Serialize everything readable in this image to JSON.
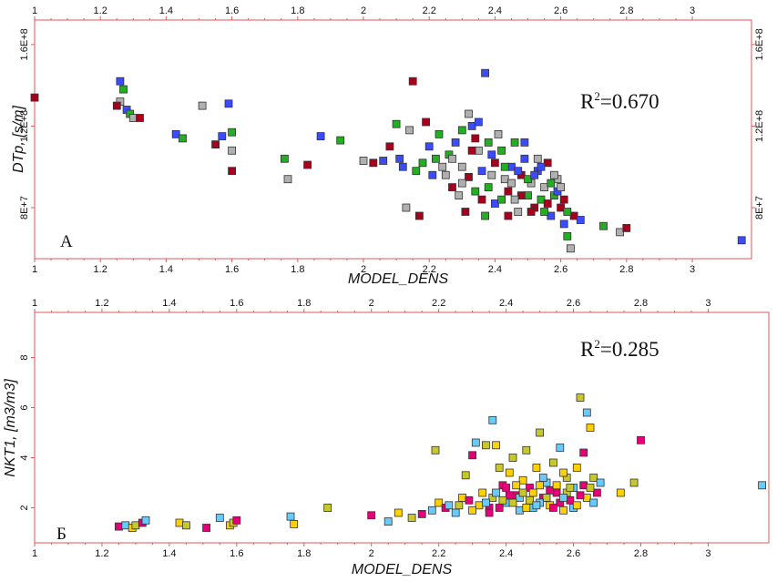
{
  "chart_data": [
    {
      "type": "scatter",
      "panel_label": "А",
      "xlabel": "MODEL_DENS",
      "ylabel": "DTp, [s/m]",
      "annotation": "R²=0.670",
      "annotation_base": "R",
      "annotation_sup": "2",
      "annotation_tail": "=0.670",
      "xlim": [
        1,
        3.18
      ],
      "ylim": [
        55000000,
        172000000
      ],
      "x_ticks": [
        1,
        1.2,
        1.4,
        1.6,
        1.8,
        2,
        2.2,
        2.4,
        2.6,
        2.8,
        3
      ],
      "x_tick_labels": [
        "1",
        "1.2",
        "1.4",
        "1.6",
        "1.8",
        "2",
        "2.2",
        "2.4",
        "2.6",
        "2.8",
        "3"
      ],
      "y_ticks": [
        80000000,
        120000000,
        160000000
      ],
      "y_tick_labels": [
        "8E+7",
        "1.2E+8",
        "1.6E+8"
      ],
      "grid": false,
      "points": [
        {
          "x": 1.0,
          "y": 134000000
        },
        {
          "x": 1.26,
          "y": 142000000
        },
        {
          "x": 1.27,
          "y": 138000000
        },
        {
          "x": 1.26,
          "y": 132000000
        },
        {
          "x": 1.25,
          "y": 130000000
        },
        {
          "x": 1.28,
          "y": 128000000
        },
        {
          "x": 1.29,
          "y": 126000000
        },
        {
          "x": 1.3,
          "y": 124000000
        },
        {
          "x": 1.32,
          "y": 124000000
        },
        {
          "x": 1.43,
          "y": 116000000
        },
        {
          "x": 1.45,
          "y": 114000000
        },
        {
          "x": 1.51,
          "y": 130000000
        },
        {
          "x": 1.55,
          "y": 111000000
        },
        {
          "x": 1.57,
          "y": 115000000
        },
        {
          "x": 1.6,
          "y": 117000000
        },
        {
          "x": 1.6,
          "y": 108000000
        },
        {
          "x": 1.6,
          "y": 98000000
        },
        {
          "x": 1.59,
          "y": 131000000
        },
        {
          "x": 1.76,
          "y": 104000000
        },
        {
          "x": 1.77,
          "y": 94000000
        },
        {
          "x": 1.83,
          "y": 101000000
        },
        {
          "x": 1.87,
          "y": 115000000
        },
        {
          "x": 1.93,
          "y": 113000000
        },
        {
          "x": 2.0,
          "y": 103000000
        },
        {
          "x": 2.03,
          "y": 102000000
        },
        {
          "x": 2.06,
          "y": 103000000
        },
        {
          "x": 2.1,
          "y": 121000000
        },
        {
          "x": 2.14,
          "y": 118000000
        },
        {
          "x": 2.15,
          "y": 142000000
        },
        {
          "x": 2.12,
          "y": 100000000
        },
        {
          "x": 2.16,
          "y": 98000000
        },
        {
          "x": 2.13,
          "y": 80000000
        },
        {
          "x": 2.17,
          "y": 76000000
        },
        {
          "x": 2.2,
          "y": 110000000
        },
        {
          "x": 2.22,
          "y": 104000000
        },
        {
          "x": 2.25,
          "y": 96000000
        },
        {
          "x": 2.27,
          "y": 90000000
        },
        {
          "x": 2.28,
          "y": 112000000
        },
        {
          "x": 2.3,
          "y": 118000000
        },
        {
          "x": 2.3,
          "y": 100000000
        },
        {
          "x": 2.32,
          "y": 95000000
        },
        {
          "x": 2.33,
          "y": 120000000
        },
        {
          "x": 2.34,
          "y": 88000000
        },
        {
          "x": 2.35,
          "y": 108000000
        },
        {
          "x": 2.36,
          "y": 84000000
        },
        {
          "x": 2.37,
          "y": 146000000
        },
        {
          "x": 2.38,
          "y": 112000000
        },
        {
          "x": 2.39,
          "y": 96000000
        },
        {
          "x": 2.4,
          "y": 102000000
        },
        {
          "x": 2.4,
          "y": 82000000
        },
        {
          "x": 2.42,
          "y": 108000000
        },
        {
          "x": 2.43,
          "y": 94000000
        },
        {
          "x": 2.44,
          "y": 88000000
        },
        {
          "x": 2.45,
          "y": 100000000
        },
        {
          "x": 2.46,
          "y": 112000000
        },
        {
          "x": 2.47,
          "y": 78000000
        },
        {
          "x": 2.48,
          "y": 96000000
        },
        {
          "x": 2.49,
          "y": 104000000
        },
        {
          "x": 2.5,
          "y": 86000000
        },
        {
          "x": 2.51,
          "y": 92000000
        },
        {
          "x": 2.52,
          "y": 80000000
        },
        {
          "x": 2.53,
          "y": 98000000
        },
        {
          "x": 2.54,
          "y": 84000000
        },
        {
          "x": 2.55,
          "y": 90000000
        },
        {
          "x": 2.56,
          "y": 102000000
        },
        {
          "x": 2.57,
          "y": 76000000
        },
        {
          "x": 2.58,
          "y": 86000000
        },
        {
          "x": 2.59,
          "y": 94000000
        },
        {
          "x": 2.6,
          "y": 80000000
        },
        {
          "x": 2.61,
          "y": 72000000
        },
        {
          "x": 2.62,
          "y": 66000000
        },
        {
          "x": 2.63,
          "y": 60000000
        },
        {
          "x": 2.64,
          "y": 76000000
        },
        {
          "x": 2.66,
          "y": 74000000
        },
        {
          "x": 2.73,
          "y": 71000000
        },
        {
          "x": 2.78,
          "y": 68000000
        },
        {
          "x": 2.8,
          "y": 70000000
        },
        {
          "x": 3.15,
          "y": 64000000
        },
        {
          "x": 2.26,
          "y": 106000000
        },
        {
          "x": 2.29,
          "y": 86000000
        },
        {
          "x": 2.31,
          "y": 78000000
        },
        {
          "x": 2.35,
          "y": 122000000
        },
        {
          "x": 2.38,
          "y": 90000000
        },
        {
          "x": 2.41,
          "y": 116000000
        },
        {
          "x": 2.44,
          "y": 76000000
        },
        {
          "x": 2.47,
          "y": 98000000
        },
        {
          "x": 2.5,
          "y": 94000000
        },
        {
          "x": 2.53,
          "y": 104000000
        },
        {
          "x": 2.56,
          "y": 82000000
        },
        {
          "x": 2.59,
          "y": 88000000
        },
        {
          "x": 2.62,
          "y": 78000000
        },
        {
          "x": 2.24,
          "y": 100000000
        },
        {
          "x": 2.33,
          "y": 108000000
        },
        {
          "x": 2.36,
          "y": 98000000
        },
        {
          "x": 2.42,
          "y": 84000000
        },
        {
          "x": 2.45,
          "y": 92000000
        },
        {
          "x": 2.48,
          "y": 86000000
        },
        {
          "x": 2.52,
          "y": 96000000
        },
        {
          "x": 2.55,
          "y": 78000000
        },
        {
          "x": 2.58,
          "y": 96000000
        },
        {
          "x": 2.19,
          "y": 122000000
        },
        {
          "x": 2.21,
          "y": 96000000
        },
        {
          "x": 2.23,
          "y": 116000000
        },
        {
          "x": 2.27,
          "y": 104000000
        },
        {
          "x": 2.34,
          "y": 114000000
        },
        {
          "x": 2.39,
          "y": 106000000
        },
        {
          "x": 2.43,
          "y": 100000000
        },
        {
          "x": 2.46,
          "y": 84000000
        },
        {
          "x": 2.51,
          "y": 78000000
        },
        {
          "x": 2.54,
          "y": 100000000
        },
        {
          "x": 2.57,
          "y": 92000000
        },
        {
          "x": 2.6,
          "y": 90000000
        },
        {
          "x": 2.61,
          "y": 84000000
        },
        {
          "x": 2.49,
          "y": 112000000
        },
        {
          "x": 2.37,
          "y": 76000000
        },
        {
          "x": 2.3,
          "y": 92000000
        },
        {
          "x": 2.08,
          "y": 110000000
        },
        {
          "x": 2.11,
          "y": 104000000
        },
        {
          "x": 2.18,
          "y": 102000000
        },
        {
          "x": 2.32,
          "y": 126000000
        }
      ]
    },
    {
      "type": "scatter",
      "panel_label": "Б",
      "xlabel": "MODEL_DENS",
      "ylabel": "NKT1, [m3/m3]",
      "annotation": "R²=0.285",
      "annotation_base": "R",
      "annotation_sup": "2",
      "annotation_tail": "=0.285",
      "xlim": [
        1,
        3.18
      ],
      "ylim": [
        0.6,
        9.8
      ],
      "x_ticks": [
        1,
        1.2,
        1.4,
        1.6,
        1.8,
        2,
        2.2,
        2.4,
        2.6,
        2.8,
        3
      ],
      "x_tick_labels": [
        "1",
        "1.2",
        "1.4",
        "1.6",
        "1.8",
        "2",
        "2.2",
        "2.4",
        "2.6",
        "2.8",
        "3"
      ],
      "y_ticks": [
        2,
        4,
        6,
        8
      ],
      "y_tick_labels": [
        "2",
        "4",
        "6",
        "8"
      ],
      "grid": false,
      "points": [
        {
          "x": 1.25,
          "y": 1.25
        },
        {
          "x": 1.27,
          "y": 1.3
        },
        {
          "x": 1.29,
          "y": 1.2
        },
        {
          "x": 1.3,
          "y": 1.3
        },
        {
          "x": 1.32,
          "y": 1.4
        },
        {
          "x": 1.33,
          "y": 1.5
        },
        {
          "x": 1.43,
          "y": 1.4
        },
        {
          "x": 1.45,
          "y": 1.3
        },
        {
          "x": 1.51,
          "y": 1.2
        },
        {
          "x": 1.55,
          "y": 1.6
        },
        {
          "x": 1.58,
          "y": 1.3
        },
        {
          "x": 1.59,
          "y": 1.4
        },
        {
          "x": 1.6,
          "y": 1.5
        },
        {
          "x": 1.76,
          "y": 1.65
        },
        {
          "x": 1.77,
          "y": 1.35
        },
        {
          "x": 1.87,
          "y": 2.0
        },
        {
          "x": 2.0,
          "y": 1.7
        },
        {
          "x": 2.05,
          "y": 1.45
        },
        {
          "x": 2.08,
          "y": 1.8
        },
        {
          "x": 2.12,
          "y": 1.6
        },
        {
          "x": 2.15,
          "y": 1.75
        },
        {
          "x": 2.18,
          "y": 1.9
        },
        {
          "x": 2.2,
          "y": 2.2
        },
        {
          "x": 2.19,
          "y": 4.3
        },
        {
          "x": 2.22,
          "y": 2.0
        },
        {
          "x": 2.25,
          "y": 1.8
        },
        {
          "x": 2.27,
          "y": 2.4
        },
        {
          "x": 2.28,
          "y": 3.3
        },
        {
          "x": 2.3,
          "y": 4.1
        },
        {
          "x": 2.31,
          "y": 4.6
        },
        {
          "x": 2.33,
          "y": 2.6
        },
        {
          "x": 2.34,
          "y": 4.5
        },
        {
          "x": 2.35,
          "y": 2.0
        },
        {
          "x": 2.36,
          "y": 5.5
        },
        {
          "x": 2.37,
          "y": 4.5
        },
        {
          "x": 2.38,
          "y": 3.6
        },
        {
          "x": 2.39,
          "y": 2.9
        },
        {
          "x": 2.4,
          "y": 2.2
        },
        {
          "x": 2.41,
          "y": 3.4
        },
        {
          "x": 2.42,
          "y": 4.0
        },
        {
          "x": 2.43,
          "y": 2.5
        },
        {
          "x": 2.44,
          "y": 1.9
        },
        {
          "x": 2.45,
          "y": 3.1
        },
        {
          "x": 2.46,
          "y": 4.3
        },
        {
          "x": 2.47,
          "y": 2.8
        },
        {
          "x": 2.48,
          "y": 2.0
        },
        {
          "x": 2.49,
          "y": 3.6
        },
        {
          "x": 2.5,
          "y": 5.0
        },
        {
          "x": 2.51,
          "y": 2.4
        },
        {
          "x": 2.52,
          "y": 3.0
        },
        {
          "x": 2.53,
          "y": 2.1
        },
        {
          "x": 2.54,
          "y": 3.8
        },
        {
          "x": 2.55,
          "y": 2.6
        },
        {
          "x": 2.56,
          "y": 4.4
        },
        {
          "x": 2.57,
          "y": 1.9
        },
        {
          "x": 2.58,
          "y": 3.2
        },
        {
          "x": 2.59,
          "y": 2.3
        },
        {
          "x": 2.6,
          "y": 2.8
        },
        {
          "x": 2.61,
          "y": 3.6
        },
        {
          "x": 2.62,
          "y": 6.4
        },
        {
          "x": 2.63,
          "y": 4.2
        },
        {
          "x": 2.64,
          "y": 5.8
        },
        {
          "x": 2.65,
          "y": 5.2
        },
        {
          "x": 2.66,
          "y": 3.2
        },
        {
          "x": 2.67,
          "y": 2.6
        },
        {
          "x": 2.68,
          "y": 3.0
        },
        {
          "x": 2.74,
          "y": 2.6
        },
        {
          "x": 2.78,
          "y": 3.0
        },
        {
          "x": 2.8,
          "y": 4.7
        },
        {
          "x": 3.16,
          "y": 2.9
        },
        {
          "x": 2.32,
          "y": 2.1
        },
        {
          "x": 2.36,
          "y": 2.4
        },
        {
          "x": 2.4,
          "y": 2.8
        },
        {
          "x": 2.44,
          "y": 2.4
        },
        {
          "x": 2.48,
          "y": 2.6
        },
        {
          "x": 2.52,
          "y": 2.4
        },
        {
          "x": 2.56,
          "y": 2.2
        },
        {
          "x": 2.6,
          "y": 2.0
        },
        {
          "x": 2.64,
          "y": 2.4
        },
        {
          "x": 2.58,
          "y": 2.6
        },
        {
          "x": 2.54,
          "y": 2.0
        },
        {
          "x": 2.5,
          "y": 2.2
        },
        {
          "x": 2.46,
          "y": 2.0
        },
        {
          "x": 2.42,
          "y": 2.2
        },
        {
          "x": 2.38,
          "y": 2.0
        },
        {
          "x": 2.34,
          "y": 2.2
        },
        {
          "x": 2.3,
          "y": 1.9
        },
        {
          "x": 2.26,
          "y": 2.1
        },
        {
          "x": 2.62,
          "y": 2.5
        },
        {
          "x": 2.66,
          "y": 2.2
        },
        {
          "x": 2.5,
          "y": 2.9
        },
        {
          "x": 2.47,
          "y": 2.3
        },
        {
          "x": 2.53,
          "y": 2.7
        },
        {
          "x": 2.57,
          "y": 2.4
        },
        {
          "x": 2.61,
          "y": 2.1
        },
        {
          "x": 2.45,
          "y": 2.6
        },
        {
          "x": 2.41,
          "y": 2.5
        },
        {
          "x": 2.37,
          "y": 2.6
        },
        {
          "x": 2.55,
          "y": 2.9
        },
        {
          "x": 2.59,
          "y": 2.8
        },
        {
          "x": 2.63,
          "y": 2.9
        },
        {
          "x": 2.49,
          "y": 2.1
        },
        {
          "x": 2.43,
          "y": 2.9
        },
        {
          "x": 2.39,
          "y": 2.3
        },
        {
          "x": 2.35,
          "y": 1.8
        },
        {
          "x": 2.51,
          "y": 3.2
        },
        {
          "x": 2.57,
          "y": 3.4
        },
        {
          "x": 2.65,
          "y": 2.8
        },
        {
          "x": 2.29,
          "y": 2.3
        },
        {
          "x": 2.23,
          "y": 2.1
        }
      ]
    }
  ],
  "colors": {
    "frame": "#e05a5a",
    "palette": [
      "#a8001c",
      "#8b0a1e",
      "#c00d2a",
      "#e5007a",
      "#ff66cc",
      "#0000a0",
      "#1a2ed6",
      "#3b4bff",
      "#00b4d8",
      "#00e0e8",
      "#66ccff",
      "#9b9bdc",
      "#a8e61e",
      "#33cc33",
      "#20b020",
      "#f5f000",
      "#ffe066",
      "#ffd100",
      "#f4a300",
      "#e8a2a2",
      "#f7c5c5",
      "#b0b0b0",
      "#a0a0ff",
      "#9e8b00",
      "#c8c82a",
      "#f0f0b0",
      "#7a0000",
      "#b000b0"
    ]
  }
}
